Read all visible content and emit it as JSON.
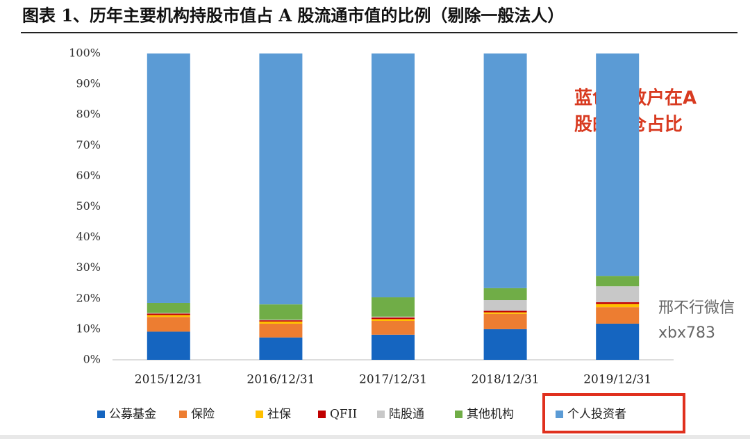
{
  "chart_data": {
    "type": "stacked-bar",
    "title": "图表 1、历年主要机构持股市值占 A 股流通市值的比例（剔除一般法人）",
    "categories": [
      "2015/12/31",
      "2016/12/31",
      "2017/12/31",
      "2018/12/31",
      "2019/12/31"
    ],
    "series": [
      {
        "name": "公募基金",
        "color": "#1565c0",
        "values": [
          9.2,
          7.3,
          8.2,
          10.0,
          11.8
        ]
      },
      {
        "name": "保险",
        "color": "#ed7d31",
        "values": [
          4.8,
          4.5,
          4.5,
          5.0,
          5.4
        ]
      },
      {
        "name": "社保",
        "color": "#ffc000",
        "values": [
          0.6,
          0.7,
          0.6,
          0.5,
          1.0
        ]
      },
      {
        "name": "QFII",
        "color": "#c00000",
        "values": [
          0.5,
          0.4,
          0.5,
          0.5,
          0.6
        ]
      },
      {
        "name": "陆股通",
        "color": "#c8c8c8",
        "values": [
          0.2,
          0.2,
          0.3,
          3.5,
          5.2
        ]
      },
      {
        "name": "其他机构",
        "color": "#70ad47",
        "values": [
          3.3,
          5.0,
          6.3,
          3.9,
          3.4
        ]
      },
      {
        "name": "个人投资者",
        "color": "#5b9bd5",
        "values": [
          81.4,
          81.9,
          79.6,
          76.6,
          72.6
        ]
      }
    ],
    "ylim": [
      0,
      100
    ],
    "yticks": [
      {
        "value": 0,
        "label": "0%"
      },
      {
        "value": 10,
        "label": "10%"
      },
      {
        "value": 20,
        "label": "20%"
      },
      {
        "value": 30,
        "label": "30%"
      },
      {
        "value": 40,
        "label": "40%"
      },
      {
        "value": 50,
        "label": "50%"
      },
      {
        "value": 60,
        "label": "60%"
      },
      {
        "value": 70,
        "label": "70%"
      },
      {
        "value": 80,
        "label": "80%"
      },
      {
        "value": 90,
        "label": "90%"
      },
      {
        "value": 100,
        "label": "100%"
      }
    ],
    "annotation": [
      "蓝色：散户在A",
      "股的持仓占比"
    ],
    "watermark": [
      "邢不行微信",
      "xbx783"
    ]
  }
}
